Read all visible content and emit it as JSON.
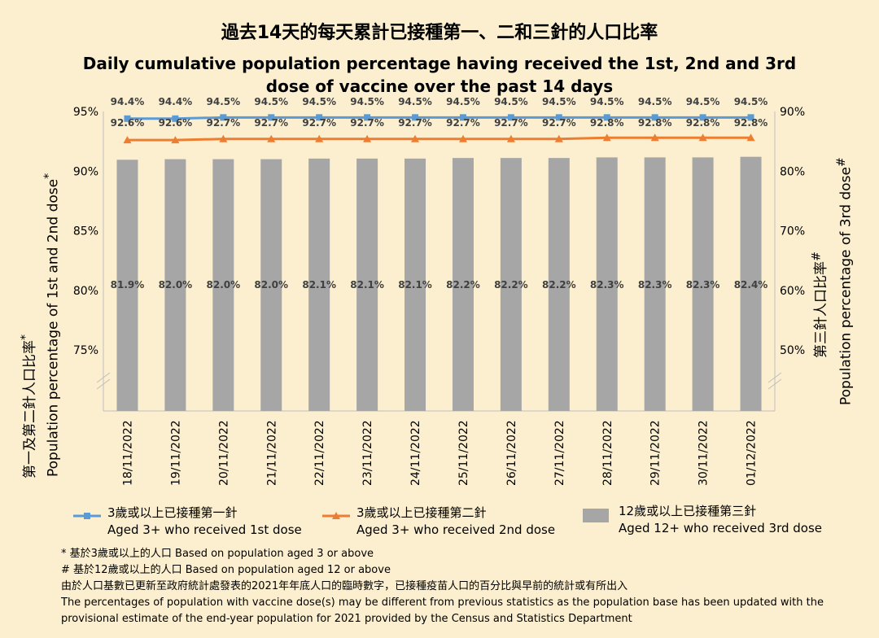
{
  "title": {
    "zh": "過去14天的每天累計已接種第一、二和三針的人口比率",
    "en": "Daily cumulative population percentage having received the 1st, 2nd and 3rd dose of vaccine over the past 14 days"
  },
  "colors": {
    "background": "#fcefcf",
    "dose1": "#5b9bd5",
    "dose2": "#ed7d31",
    "dose3": "#a6a6a6",
    "label": "#404040"
  },
  "left_axis_label": {
    "zh": "第一及第二針人口比率",
    "sup": "*",
    "en": "Population percentage of 1st and 2nd dose",
    "en_sup": "*"
  },
  "right_axis_label": {
    "zh": "第三針人口比率",
    "sup": "#",
    "en": "Population percentage of 3rd dose",
    "en_sup": "#"
  },
  "chart_data": {
    "type": "bar",
    "categories": [
      "18/11/2022",
      "19/11/2022",
      "20/11/2022",
      "21/11/2022",
      "22/11/2022",
      "23/11/2022",
      "24/11/2022",
      "25/11/2022",
      "26/11/2022",
      "27/11/2022",
      "28/11/2022",
      "29/11/2022",
      "30/11/2022",
      "01/12/2022"
    ],
    "y_left": {
      "min": 70,
      "max": 95,
      "ticks": [
        75,
        80,
        85,
        90,
        95
      ],
      "tick_labels": [
        "75%",
        "80%",
        "85%",
        "90%",
        "95%"
      ],
      "broken_axis": true
    },
    "y_right": {
      "min": 40,
      "max": 90,
      "ticks": [
        50,
        60,
        70,
        80,
        90
      ],
      "tick_labels": [
        "50%",
        "60%",
        "70%",
        "80%",
        "90%"
      ],
      "broken_axis": true
    },
    "series": [
      {
        "name": "Aged 3+ who received 1st dose",
        "name_zh": "3歲或以上已接種第一針",
        "type": "line",
        "axis": "left",
        "marker": "square",
        "values": [
          94.4,
          94.4,
          94.5,
          94.5,
          94.5,
          94.5,
          94.5,
          94.5,
          94.5,
          94.5,
          94.5,
          94.5,
          94.5,
          94.5
        ],
        "labels": [
          "94.4%",
          "94.4%",
          "94.5%",
          "94.5%",
          "94.5%",
          "94.5%",
          "94.5%",
          "94.5%",
          "94.5%",
          "94.5%",
          "94.5%",
          "94.5%",
          "94.5%",
          "94.5%"
        ]
      },
      {
        "name": "Aged 3+ who received 2nd dose",
        "name_zh": "3歲或以上已接種第二針",
        "type": "line",
        "axis": "left",
        "marker": "triangle",
        "values": [
          92.6,
          92.6,
          92.7,
          92.7,
          92.7,
          92.7,
          92.7,
          92.7,
          92.7,
          92.7,
          92.8,
          92.8,
          92.8,
          92.8
        ],
        "labels": [
          "92.6%",
          "92.6%",
          "92.7%",
          "92.7%",
          "92.7%",
          "92.7%",
          "92.7%",
          "92.7%",
          "92.7%",
          "92.7%",
          "92.8%",
          "92.8%",
          "92.8%",
          "92.8%"
        ]
      },
      {
        "name": "Aged 12+ who received 3rd dose",
        "name_zh": "12歲或以上已接種第三針",
        "type": "bar",
        "axis": "right",
        "values": [
          81.9,
          82.0,
          82.0,
          82.0,
          82.1,
          82.1,
          82.1,
          82.2,
          82.2,
          82.2,
          82.3,
          82.3,
          82.3,
          82.4
        ],
        "labels": [
          "81.9%",
          "82.0%",
          "82.0%",
          "82.0%",
          "82.1%",
          "82.1%",
          "82.1%",
          "82.2%",
          "82.2%",
          "82.2%",
          "82.3%",
          "82.3%",
          "82.3%",
          "82.4%"
        ]
      }
    ]
  },
  "legend": [
    {
      "zh": "3歲或以上已接種第一針",
      "en": "Aged 3+ who received 1st dose"
    },
    {
      "zh": "3歲或以上已接種第二針",
      "en": "Aged 3+ who received 2nd dose"
    },
    {
      "zh": "12歲或以上已接種第三針",
      "en": "Aged 12+ who received 3rd dose"
    }
  ],
  "footnotes": [
    "* 基於3歲或以上的人口 Based on population aged 3 or above",
    "# 基於12歲或以上的人口 Based on population aged 12 or above",
    "由於人口基數已更新至政府統計處發表的2021年年底人口的臨時數字，已接種疫苗人口的百分比與早前的統計或有所出入",
    "The percentages of population with vaccine dose(s) may be different from previous statistics as the population base has been updated with the",
    "provisional estimate of the end-year population for 2021 provided by the Census and Statistics Department"
  ]
}
